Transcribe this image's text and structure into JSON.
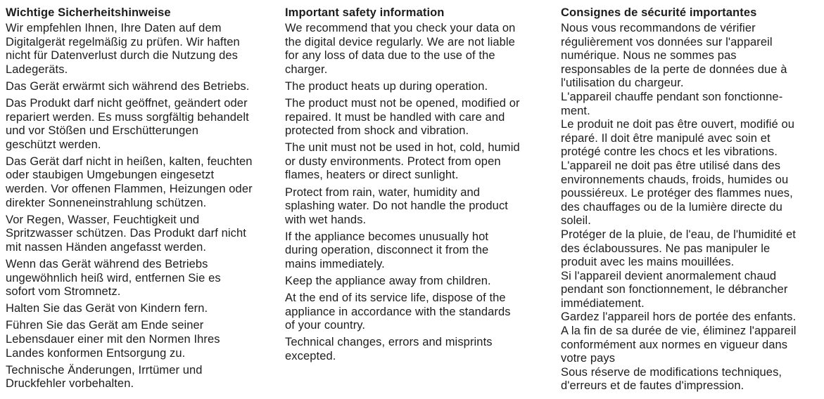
{
  "document": {
    "columns": [
      {
        "lang": "de",
        "heading": "Wichtige Sicherheitshinweise",
        "paragraphs": [
          [
            "Wir  empfehlen Ihnen, Ihre Daten auf dem",
            "Digitalgerät regelmäßig zu prüfen. Wir haften",
            "nicht für Datenverlust durch die Nutzung des",
            "Ladegeräts."
          ],
          [
            "Das Gerät erwärmt sich während des Betriebs."
          ],
          [
            "Das Produkt darf nicht geöffnet, geändert oder",
            "repariert werden. Es muss sorgfältig behandelt",
            "und vor Stößen und Erschütterungen",
            "geschützt werden."
          ],
          [
            "Das Gerät darf nicht in heißen, kalten, feuchten",
            "oder staubigen Umgebungen eingesetzt",
            "werden. Vor offenen Flammen, Heizungen oder",
            "direkter Sonneneinstrahlung schützen."
          ],
          [
            "Vor Regen, Wasser, Feuchtigkeit und",
            "Spritzwasser schützen. Das Produkt darf nicht",
            "mit nassen Händen angefasst werden."
          ],
          [
            "Wenn das Gerät während des Betriebs",
            "ungewöhnlich heiß wird, entfernen Sie es",
            "sofort vom Stromnetz."
          ],
          [
            "Halten Sie das Gerät von Kindern fern."
          ],
          [
            "Führen Sie das Gerät am Ende seiner",
            "Lebensdauer einer mit den Normen Ihres",
            "Landes konformen Entsorgung zu."
          ],
          [
            "Technische Änderungen, Irrtümer und",
            "Druckfehler vorbehalten."
          ]
        ]
      },
      {
        "lang": "en",
        "heading": "Important safety information",
        "paragraphs": [
          [
            "We recommend that you check your data on",
            "the digital device regularly. We are not liable",
            "for any loss of data due to the use of the",
            "charger."
          ],
          [
            "The product heats up during operation."
          ],
          [
            "The product must not be opened, modified or",
            "repaired. It must be handled with care and",
            "protected from shock and vibration."
          ],
          [
            "The unit must not be used in hot, cold, humid",
            "or dusty environments. Protect from open",
            "flames, heaters or direct sunlight."
          ],
          [
            "Protect from rain, water, humidity and",
            "splashing water. Do not handle the product",
            "with wet hands."
          ],
          [
            "If the appliance becomes unusually hot",
            "during operation, disconnect it from the",
            "mains immediately."
          ],
          [
            "Keep the appliance away from children."
          ],
          [
            "At the end of its service life, dispose of the",
            "appliance in accordance with the standards",
            "of your country."
          ],
          [
            "Technical changes, errors and misprints",
            "excepted."
          ]
        ]
      },
      {
        "lang": "fr",
        "heading": "Consignes de sécurité importantes",
        "paragraphs": [
          [
            "Nous vous recommandons de vérifier",
            "régulièrement vos données sur l'appareil",
            "numérique. Nous ne sommes pas",
            "responsables de la perte de données due à",
            "l'utilisation du chargeur."
          ],
          [
            "L'appareil chauffe pendant son fonctionne-",
            "ment."
          ],
          [
            "Le produit ne doit pas être ouvert, modifié ou",
            "réparé. Il doit être manipulé avec soin et",
            "protégé contre les chocs et les vibrations."
          ],
          [
            "L'appareil ne doit pas être utilisé dans des",
            "environnements chauds, froids, humides ou",
            "poussiéreux. Le protéger des flammes nues,",
            "des chauffages ou de la lumière directe du",
            "soleil."
          ],
          [
            "Protéger de la pluie, de l'eau, de l'humidité et",
            "des éclaboussures. Ne pas manipuler le",
            "produit avec les mains mouillées."
          ],
          [
            "Si l'appareil devient anormalement chaud",
            "pendant son fonctionnement, le débrancher",
            "immédiatement."
          ],
          [
            "Gardez l'appareil hors de portée des enfants."
          ],
          [
            "A la fin de sa durée de vie, éliminez l'appareil",
            "conformément aux normes en vigueur dans",
            "votre pays"
          ],
          [
            "Sous réserve de modifications techniques,",
            "d'erreurs et de fautes d'impression."
          ]
        ]
      }
    ]
  }
}
